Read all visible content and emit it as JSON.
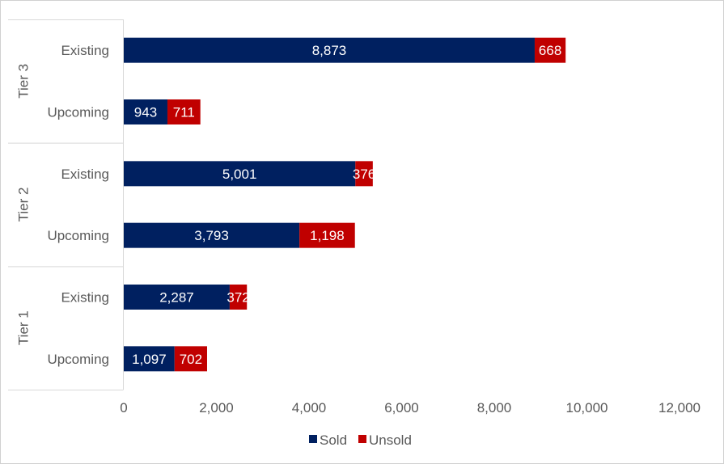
{
  "chart_data": {
    "type": "bar",
    "orientation": "horizontal",
    "stacked": true,
    "title": "",
    "xlabel": "",
    "ylabel": "",
    "xlim": [
      0,
      12000
    ],
    "x_ticks": [
      0,
      2000,
      4000,
      6000,
      8000,
      10000,
      12000
    ],
    "x_tick_labels": [
      "0",
      "2,000",
      "4,000",
      "6,000",
      "8,000",
      "10,000",
      "12,000"
    ],
    "grid": false,
    "legend_position": "bottom",
    "groups": [
      {
        "name": "Tier 3",
        "categories": [
          "Existing",
          "Upcoming"
        ]
      },
      {
        "name": "Tier 2",
        "categories": [
          "Existing",
          "Upcoming"
        ]
      },
      {
        "name": "Tier 1",
        "categories": [
          "Existing",
          "Upcoming"
        ]
      }
    ],
    "categories": [
      "Tier 3 - Existing",
      "Tier 3 - Upcoming",
      "Tier 2 - Existing",
      "Tier 2 - Upcoming",
      "Tier 1 - Existing",
      "Tier 1 - Upcoming"
    ],
    "series": [
      {
        "name": "Sold",
        "color": "#002060",
        "values": [
          8873,
          943,
          5001,
          3793,
          2287,
          1097
        ],
        "labels": [
          "8,873",
          "943",
          "5,001",
          "3,793",
          "2,287",
          "1,097"
        ]
      },
      {
        "name": "Unsold",
        "color": "#C00000",
        "values": [
          668,
          711,
          376,
          1198,
          372,
          702
        ],
        "labels": [
          "668",
          "711",
          "376",
          "1,198",
          "372",
          "702"
        ]
      }
    ]
  }
}
